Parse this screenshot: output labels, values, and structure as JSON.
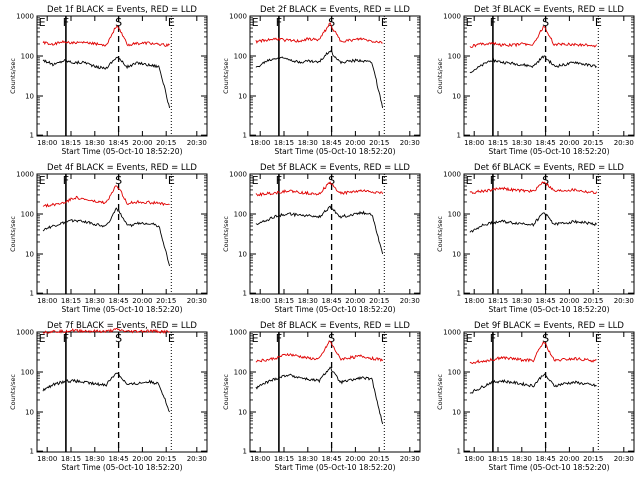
{
  "colors": {
    "events": "#000000",
    "lld": "#e00000",
    "axes": "#000000",
    "background": "#ffffff"
  },
  "chart_data": [
    {
      "type": "line",
      "title": "Det 1f BLACK = Events, RED = LLD",
      "xlabel": "Start Time (05-Oct-10 18:52:20)",
      "ylabel": "Counts/sec",
      "yscale": "log",
      "ylim": [
        1,
        1000
      ],
      "xticks": [
        "18:00",
        "18:15",
        "18:30",
        "18:45",
        "20:00",
        "20:15",
        "20:30"
      ],
      "yticks": [
        "1",
        "10",
        "100",
        "1000"
      ],
      "markers": [
        "E",
        "F",
        "S",
        "E"
      ],
      "series": [
        {
          "values": [
            80,
            60,
            78,
            68,
            70,
            53,
            50,
            96,
            53,
            68,
            60,
            55,
            5
          ]
        },
        {
          "values": [
            220,
            195,
            230,
            210,
            215,
            200,
            190,
            600,
            190,
            205,
            215,
            190,
            185
          ]
        }
      ]
    },
    {
      "type": "line",
      "title": "Det 2f BLACK = Events, RED = LLD",
      "xlabel": "Start Time (05-Oct-10 18:52:20)",
      "ylabel": "Counts/sec",
      "yscale": "log",
      "ylim": [
        1,
        1000
      ],
      "xticks": [
        "18:00",
        "18:15",
        "18:30",
        "18:45",
        "20:00",
        "20:15",
        "20:30"
      ],
      "yticks": [
        "1",
        "10",
        "100",
        "1000"
      ],
      "markers": [
        "E",
        "F",
        "S",
        "E"
      ],
      "series": [
        {
          "values": [
            50,
            75,
            90,
            88,
            70,
            75,
            70,
            140,
            68,
            75,
            78,
            70,
            5
          ]
        },
        {
          "values": [
            230,
            250,
            270,
            245,
            235,
            265,
            255,
            650,
            240,
            245,
            270,
            235,
            220
          ]
        }
      ]
    },
    {
      "type": "line",
      "title": "Det 3f BLACK = Events, RED = LLD",
      "xlabel": "Start Time (05-Oct-10 18:52:20)",
      "ylabel": "Counts/sec",
      "yscale": "log",
      "ylim": [
        1,
        1000
      ],
      "xticks": [
        "18:00",
        "18:15",
        "18:30",
        "18:45",
        "20:00",
        "20:15",
        "20:30"
      ],
      "yticks": [
        "1",
        "10",
        "100",
        "1000"
      ],
      "markers": [
        "E",
        "F",
        "S",
        "E"
      ],
      "series": [
        {
          "values": [
            40,
            55,
            80,
            70,
            65,
            60,
            55,
            100,
            55,
            60,
            70,
            60,
            55
          ]
        },
        {
          "values": [
            170,
            200,
            210,
            190,
            185,
            200,
            195,
            560,
            190,
            200,
            195,
            185,
            180
          ]
        }
      ]
    },
    {
      "type": "line",
      "title": "Det 4f BLACK = Events, RED = LLD",
      "xlabel": "Start Time (05-Oct-10 18:52:20)",
      "ylabel": "Counts/sec",
      "yscale": "log",
      "ylim": [
        1,
        1000
      ],
      "xticks": [
        "18:00",
        "18:15",
        "18:30",
        "18:45",
        "20:00",
        "20:15",
        "20:30"
      ],
      "yticks": [
        "1",
        "10",
        "100",
        "1000"
      ],
      "markers": [
        "E",
        "F",
        "S",
        "E"
      ],
      "series": [
        {
          "values": [
            40,
            50,
            60,
            70,
            65,
            55,
            50,
            140,
            50,
            58,
            60,
            50,
            5
          ]
        },
        {
          "values": [
            160,
            170,
            195,
            260,
            230,
            200,
            190,
            540,
            185,
            200,
            195,
            185,
            170
          ]
        }
      ]
    },
    {
      "type": "line",
      "title": "Det 5f BLACK = Events, RED = LLD",
      "xlabel": "Start Time (05-Oct-10 18:52:20)",
      "ylabel": "Counts/sec",
      "yscale": "log",
      "ylim": [
        1,
        1000
      ],
      "xticks": [
        "18:00",
        "18:15",
        "18:30",
        "18:45",
        "20:00",
        "20:15",
        "20:30"
      ],
      "yticks": [
        "1",
        "10",
        "100",
        "1000"
      ],
      "markers": [
        "E",
        "F",
        "S",
        "E"
      ],
      "series": [
        {
          "values": [
            55,
            70,
            90,
            100,
            95,
            90,
            85,
            150,
            85,
            95,
            110,
            100,
            10
          ]
        },
        {
          "values": [
            300,
            320,
            340,
            380,
            350,
            330,
            320,
            620,
            330,
            350,
            380,
            360,
            330
          ]
        }
      ]
    },
    {
      "type": "line",
      "title": "Det 6f BLACK = Events, RED = LLD",
      "xlabel": "Start Time (05-Oct-10 18:52:20)",
      "ylabel": "Counts/sec",
      "yscale": "log",
      "ylim": [
        1,
        1000
      ],
      "xticks": [
        "18:00",
        "18:15",
        "18:30",
        "18:45",
        "20:00",
        "20:15",
        "20:30"
      ],
      "yticks": [
        "1",
        "10",
        "100",
        "1000"
      ],
      "markers": [
        "E",
        "F",
        "S",
        "E"
      ],
      "series": [
        {
          "values": [
            35,
            50,
            60,
            65,
            60,
            58,
            55,
            110,
            55,
            60,
            65,
            60,
            55
          ]
        },
        {
          "values": [
            340,
            370,
            400,
            450,
            400,
            380,
            370,
            660,
            370,
            390,
            400,
            360,
            340
          ]
        }
      ]
    },
    {
      "type": "line",
      "title": "Det 7f BLACK = Events, RED = LLD",
      "xlabel": "Start Time (05-Oct-10 18:52:20)",
      "ylabel": "Counts/sec",
      "yscale": "log",
      "ylim": [
        1,
        1000
      ],
      "xticks": [
        "18:00",
        "18:15",
        "18:30",
        "18:45",
        "20:00",
        "20:15",
        "20:30"
      ],
      "yticks": [
        "1",
        "10",
        "100",
        "1000"
      ],
      "markers": [
        "E",
        "F",
        "S",
        "E"
      ],
      "series": [
        {
          "values": [
            35,
            48,
            58,
            60,
            55,
            50,
            48,
            100,
            48,
            52,
            58,
            50,
            10
          ]
        },
        {
          "values": [
            1000,
            1020,
            1050,
            1100,
            1050,
            1040,
            1020,
            1150,
            1020,
            1040,
            1060,
            1030,
            1000
          ]
        }
      ]
    },
    {
      "type": "line",
      "title": "Det 8f BLACK = Events, RED = LLD",
      "xlabel": "Start Time (05-Oct-10 18:52:20)",
      "ylabel": "Counts/sec",
      "yscale": "log",
      "ylim": [
        1,
        1000
      ],
      "xticks": [
        "18:00",
        "18:15",
        "18:30",
        "18:45",
        "20:00",
        "20:15",
        "20:30"
      ],
      "yticks": [
        "1",
        "10",
        "100",
        "1000"
      ],
      "markers": [
        "E",
        "F",
        "S",
        "E"
      ],
      "series": [
        {
          "values": [
            40,
            55,
            70,
            85,
            75,
            65,
            60,
            130,
            55,
            62,
            72,
            65,
            5
          ]
        },
        {
          "values": [
            190,
            200,
            230,
            280,
            250,
            220,
            210,
            600,
            210,
            230,
            250,
            220,
            200
          ]
        }
      ]
    },
    {
      "type": "line",
      "title": "Det 9f BLACK = Events, RED = LLD",
      "xlabel": "Start Time (05-Oct-10 18:52:20)",
      "ylabel": "Counts/sec",
      "yscale": "log",
      "ylim": [
        1,
        1000
      ],
      "xticks": [
        "18:00",
        "18:15",
        "18:30",
        "18:45",
        "20:00",
        "20:15",
        "20:30"
      ],
      "yticks": [
        "1",
        "10",
        "100",
        "1000"
      ],
      "markers": [
        "E",
        "F",
        "S",
        "E"
      ],
      "series": [
        {
          "values": [
            30,
            40,
            55,
            60,
            55,
            50,
            45,
            90,
            45,
            52,
            55,
            50,
            45
          ]
        },
        {
          "values": [
            170,
            185,
            200,
            230,
            215,
            200,
            195,
            580,
            190,
            205,
            215,
            200,
            190
          ]
        }
      ]
    }
  ]
}
